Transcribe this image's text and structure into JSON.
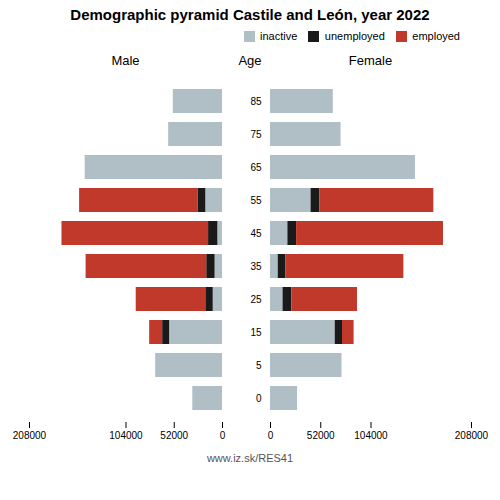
{
  "chart_data": {
    "type": "bar",
    "title": "Demographic pyramid Castile and León, year 2022",
    "caption": "www.iz.sk/RES41",
    "ylabel": "Age",
    "orientation": "horizontal",
    "stacked": true,
    "legend": "upper right",
    "categories": [
      "0",
      "5",
      "15",
      "25",
      "35",
      "45",
      "55",
      "65",
      "75",
      "85"
    ],
    "panels": [
      {
        "xlabel": "Male",
        "xlim": [
          208000,
          0
        ],
        "xticks": [
          0,
          52000,
          104000,
          208000
        ],
        "series": [
          {
            "name": "inactive",
            "color": "#b0bec5",
            "values": [
              32000,
              72000,
              57000,
              10000,
              8000,
              5000,
              18000,
              148000,
              58000,
              53000
            ]
          },
          {
            "name": "unemployed",
            "color": "#1a1a1a",
            "values": [
              0,
              0,
              7500,
              8000,
              9000,
              10000,
              8000,
              0,
              0,
              0
            ]
          },
          {
            "name": "employed",
            "color": "#c0392b",
            "values": [
              0,
              0,
              14000,
              75000,
              130000,
              158000,
              128000,
              0,
              0,
              0
            ]
          }
        ]
      },
      {
        "xlabel": "Female",
        "xlim": [
          0,
          208000
        ],
        "xticks": [
          0,
          52000,
          104000,
          208000
        ],
        "series": [
          {
            "name": "inactive",
            "color": "#b0bec5",
            "values": [
              28000,
              74000,
              67000,
              13000,
              8000,
              18000,
              42000,
              150000,
              73000,
              65000
            ]
          },
          {
            "name": "unemployed",
            "color": "#1a1a1a",
            "values": [
              0,
              0,
              7500,
              9000,
              8000,
              9000,
              9000,
              0,
              0,
              0
            ]
          },
          {
            "name": "employed",
            "color": "#c0392b",
            "values": [
              0,
              0,
              12000,
              68000,
              122000,
              152000,
              118000,
              0,
              0,
              0
            ]
          }
        ]
      }
    ]
  }
}
